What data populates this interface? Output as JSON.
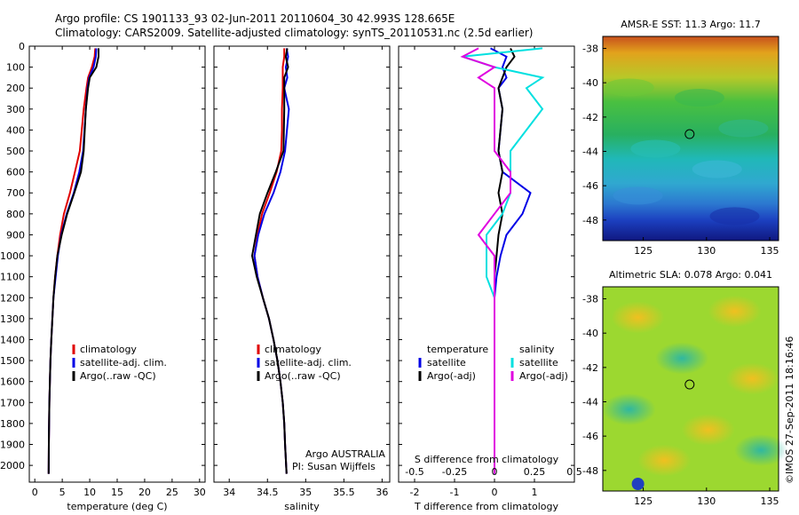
{
  "header": {
    "line1": "Argo profile: CS 1901133_93 02-Jun-2011 20110604_30 42.993S 128.665E",
    "line2": "Climatology: CARS2009. Satellite-adjusted climatology: synTS_20110531.nc (2.5d earlier)"
  },
  "colors": {
    "climatology": "#e00000",
    "satellite": "#0000e6",
    "argo": "#000000",
    "sat_salinity": "#00e0e0",
    "argo_salinity": "#e000e0"
  },
  "chart_data": [
    {
      "type": "line",
      "xlabel": "temperature (deg C)",
      "ylabel": "",
      "xlim": [
        -1,
        31
      ],
      "ylim": [
        2080,
        0
      ],
      "xticks": [
        0,
        5,
        10,
        15,
        20,
        25,
        30
      ],
      "yticks": [
        0,
        100,
        200,
        300,
        400,
        500,
        600,
        700,
        800,
        900,
        1000,
        1100,
        1200,
        1300,
        1400,
        1500,
        1600,
        1700,
        1800,
        1900,
        2000
      ],
      "legend": [
        "climatology",
        "satellite-adj. clim.",
        "Argo(..raw -QC)"
      ],
      "series": [
        {
          "name": "climatology",
          "color": "#e00000",
          "x": [
            11.0,
            10.9,
            10.4,
            9.7,
            9.4,
            8.9,
            8.2,
            7.3,
            6.4,
            5.3,
            4.6,
            4.1,
            3.7,
            3.4,
            3.2,
            3.0,
            2.85,
            2.75,
            2.65,
            2.6,
            2.55,
            2.52
          ],
          "y": [
            10,
            50,
            100,
            150,
            200,
            300,
            500,
            600,
            700,
            800,
            900,
            1000,
            1100,
            1200,
            1300,
            1400,
            1500,
            1600,
            1700,
            1800,
            1900,
            2040
          ]
        },
        {
          "name": "satellite-adj. clim.",
          "color": "#0000e6",
          "x": [
            11.2,
            11.1,
            10.7,
            9.9,
            9.6,
            9.3,
            8.8,
            8.1,
            7.1,
            5.8,
            4.8,
            4.2,
            3.8,
            3.4,
            3.2,
            3.0,
            2.85,
            2.75,
            2.65,
            2.6,
            2.55,
            2.52
          ],
          "y": [
            10,
            50,
            100,
            150,
            200,
            300,
            500,
            600,
            700,
            800,
            900,
            1000,
            1100,
            1200,
            1300,
            1400,
            1500,
            1600,
            1700,
            1800,
            1900,
            2040
          ]
        },
        {
          "name": "Argo(..raw -QC)",
          "color": "#000000",
          "x": [
            11.6,
            11.6,
            11.2,
            10.0,
            9.7,
            9.3,
            8.9,
            8.4,
            7.2,
            5.9,
            4.9,
            4.1,
            3.7,
            3.4,
            3.2,
            3.0,
            2.85,
            2.75,
            2.65,
            2.6,
            2.55,
            2.52
          ],
          "y": [
            10,
            50,
            100,
            150,
            200,
            300,
            500,
            600,
            700,
            800,
            900,
            1000,
            1100,
            1200,
            1300,
            1400,
            1500,
            1600,
            1700,
            1800,
            1900,
            2040
          ]
        }
      ]
    },
    {
      "type": "line",
      "xlabel": "salinity",
      "xlim": [
        33.8,
        36.1
      ],
      "ylim": [
        2080,
        0
      ],
      "xticks": [
        34,
        34.5,
        35,
        35.5,
        36
      ],
      "legend": [
        "climatology",
        "satellite-adj. clim.",
        "Argo(..raw -QC)"
      ],
      "annotation": [
        "Argo AUSTRALIA",
        "PI: Susan Wijffels"
      ],
      "series": [
        {
          "name": "climatology",
          "color": "#e00000",
          "x": [
            34.72,
            34.72,
            34.7,
            34.7,
            34.69,
            34.69,
            34.68,
            34.62,
            34.53,
            34.43,
            34.37,
            34.33,
            34.37,
            34.44,
            34.52,
            34.58,
            34.63,
            34.67,
            34.7,
            34.72,
            34.73,
            34.75
          ],
          "y": [
            10,
            50,
            100,
            200,
            300,
            400,
            500,
            600,
            700,
            800,
            900,
            1000,
            1100,
            1200,
            1300,
            1400,
            1500,
            1600,
            1700,
            1800,
            1900,
            2040
          ]
        },
        {
          "name": "satellite-adj. clim.",
          "color": "#0000e6",
          "x": [
            34.75,
            34.77,
            34.74,
            34.76,
            34.72,
            34.78,
            34.73,
            34.67,
            34.58,
            34.46,
            34.38,
            34.33,
            34.37,
            34.44,
            34.52,
            34.58,
            34.63,
            34.67,
            34.7,
            34.72,
            34.73,
            34.75
          ],
          "y": [
            10,
            50,
            100,
            150,
            200,
            300,
            500,
            600,
            700,
            800,
            900,
            1000,
            1100,
            1200,
            1300,
            1400,
            1500,
            1600,
            1700,
            1800,
            1900,
            2040
          ]
        },
        {
          "name": "Argo(..raw -QC)",
          "color": "#000000",
          "x": [
            34.76,
            34.74,
            34.77,
            34.72,
            34.72,
            34.72,
            34.71,
            34.61,
            34.5,
            34.4,
            34.35,
            34.3,
            34.36,
            34.44,
            34.52,
            34.58,
            34.63,
            34.67,
            34.7,
            34.72,
            34.73,
            34.75
          ],
          "y": [
            10,
            50,
            100,
            150,
            200,
            300,
            500,
            600,
            700,
            800,
            900,
            1000,
            1100,
            1200,
            1300,
            1400,
            1500,
            1600,
            1700,
            1800,
            1900,
            2040
          ]
        }
      ]
    },
    {
      "type": "line",
      "xlabel": "T difference from climatology",
      "top_label": "S difference from climatology",
      "xlim": [
        -2.4,
        2.0
      ],
      "ylim": [
        2080,
        0
      ],
      "xticks": [
        -2,
        -1,
        0,
        1
      ],
      "xticklabels": [
        "-2",
        "-1",
        "0",
        "1"
      ],
      "top_ticks": [
        -0.5,
        -0.25,
        0,
        0.25,
        0.5
      ],
      "legend": {
        "temperature": [
          "satellite",
          "Argo(-adj)"
        ],
        "salinity": [
          "satellite",
          "Argo(-adj)"
        ]
      },
      "series": [
        {
          "name": "T satellite",
          "color": "#0000e6",
          "x": [
            -0.1,
            0.3,
            0.2,
            0.3,
            0.1,
            0.2,
            0.1,
            0.2,
            0.9,
            0.7,
            0.3,
            0.15,
            0.05,
            0.0,
            0.0,
            0.0,
            0.0,
            0.0,
            0.0,
            0.0,
            0.0
          ],
          "y": [
            10,
            50,
            100,
            150,
            200,
            300,
            500,
            600,
            700,
            800,
            900,
            1000,
            1100,
            1200,
            1300,
            1400,
            1500,
            1600,
            1700,
            1800,
            2040
          ]
        },
        {
          "name": "T Argo(-adj)",
          "color": "#000000",
          "x": [
            0.4,
            0.5,
            0.3,
            0.2,
            0.1,
            0.2,
            0.1,
            0.2,
            0.1,
            0.2,
            0.1,
            0.05,
            0.0,
            0.0,
            0.0,
            0.0,
            0.0,
            0.0,
            0.0,
            0.0,
            0.0
          ],
          "y": [
            10,
            50,
            100,
            150,
            200,
            300,
            500,
            600,
            700,
            800,
            900,
            1000,
            1100,
            1200,
            1300,
            1400,
            1500,
            1600,
            1700,
            1800,
            2040
          ]
        },
        {
          "name": "S satellite",
          "color": "#00e0e0",
          "x": [
            0.3,
            -0.2,
            0.0,
            0.3,
            0.2,
            0.3,
            0.1,
            0.1,
            0.1,
            0.05,
            -0.05,
            -0.05,
            -0.05,
            0.0,
            0.0,
            0.0,
            0.0,
            0.0,
            0.0,
            0.0,
            0.0
          ],
          "y": [
            10,
            50,
            100,
            150,
            200,
            300,
            500,
            600,
            700,
            800,
            900,
            1000,
            1100,
            1200,
            1300,
            1400,
            1500,
            1600,
            1700,
            1800,
            2040
          ]
        },
        {
          "name": "S Argo(-adj)",
          "color": "#e000e0",
          "x": [
            -0.1,
            -0.2,
            0.0,
            -0.1,
            0.0,
            0.0,
            0.0,
            0.1,
            0.1,
            0.0,
            -0.1,
            0.0,
            0.0,
            0.0,
            0.0,
            0.0,
            0.0,
            0.0,
            0.0,
            0.0,
            0.0
          ],
          "y": [
            10,
            50,
            100,
            150,
            200,
            300,
            500,
            600,
            700,
            800,
            900,
            1000,
            1100,
            1200,
            1300,
            1400,
            1500,
            1600,
            1700,
            1800,
            2040
          ]
        }
      ]
    },
    {
      "type": "heatmap",
      "title": "AMSR-E SST: 11.3 Argo: 11.7",
      "xticks": [
        125,
        130,
        135
      ],
      "yticks": [
        -38,
        -40,
        -42,
        -44,
        -46,
        -48
      ],
      "xlim": [
        121.8,
        135.7
      ],
      "ylim": [
        -49.2,
        -37.3
      ],
      "marker": [
        128.665,
        -42.993
      ]
    },
    {
      "type": "heatmap",
      "title": "Altimetric SLA: 0.078 Argo: 0.041",
      "xticks": [
        125,
        130,
        135
      ],
      "yticks": [
        -38,
        -40,
        -42,
        -44,
        -46,
        -48
      ],
      "xlim": [
        121.8,
        135.7
      ],
      "ylim": [
        -49.2,
        -37.3
      ],
      "marker": [
        128.665,
        -42.993
      ]
    }
  ],
  "footer": {
    "credit": "©IMOS 27-Sep-2011 18:16:46"
  }
}
